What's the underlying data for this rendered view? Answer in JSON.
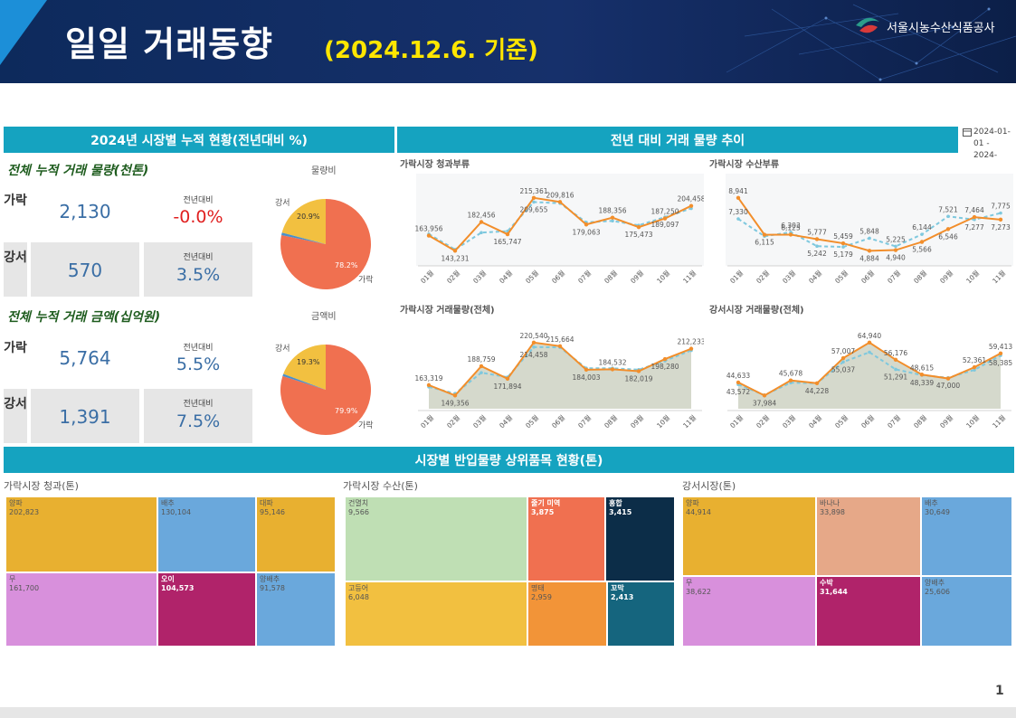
{
  "header": {
    "title": "일일 거래동향",
    "date": "(2024.12.6. 기준)",
    "org": "서울시농수산식품공사"
  },
  "sections": {
    "cumulative_title": "2024년 시장별 누적 현황(전년대비 %)",
    "trend_title": "전년 대비 거래 물량 추이",
    "date_range": "2024-01-01 - 2024-",
    "top_items_title": "시장별 반입물량 상위품목 현황(톤)"
  },
  "volume": {
    "title": "전체 누적 거래 물량(천톤)",
    "pie_title": "물량비",
    "rows": [
      {
        "market": "가락",
        "value": "2,130",
        "yoy_label": "전년대비",
        "yoy": "-0.0%"
      },
      {
        "market": "강서",
        "value": "570",
        "yoy_label": "전년대비",
        "yoy": "3.5%"
      }
    ],
    "pie": {
      "garak_pct": 78.2,
      "gangseo_pct": 20.9,
      "garak_label": "78.2%",
      "gangseo_label": "20.9%",
      "garak_name": "가락",
      "gangseo_name": "강서"
    }
  },
  "amount": {
    "title": "전체 누적 거래 금액(십억원)",
    "pie_title": "금액비",
    "rows": [
      {
        "market": "가락",
        "value": "5,764",
        "yoy_label": "전년대비",
        "yoy": "5.5%"
      },
      {
        "market": "강서",
        "value": "1,391",
        "yoy_label": "전년대비",
        "yoy": "7.5%"
      }
    ],
    "pie": {
      "garak_pct": 79.9,
      "gangseo_pct": 19.3,
      "garak_label": "79.9%",
      "gangseo_label": "19.3%",
      "garak_name": "가락",
      "gangseo_name": "강서"
    }
  },
  "colors": {
    "orange": "#f28e2b",
    "dashed": "#7ec8de",
    "garak": "#f07050",
    "gangseo": "#f2c040",
    "blue_slice": "#4a90c8",
    "area": "#d5d9cc"
  },
  "chart_data": [
    {
      "type": "line",
      "title": "가락시장 청과부류",
      "categories": [
        "01월",
        "02월",
        "03월",
        "04월",
        "05월",
        "06월",
        "07월",
        "08월",
        "09월",
        "10월",
        "11월"
      ],
      "series": [
        {
          "values": [
            163956,
            143231,
            182456,
            165747,
            215361,
            209816,
            179063,
            188356,
            175473,
            187250,
            204458
          ]
        },
        {
          "values": [
            166000,
            145000,
            168000,
            170000,
            209655,
            208000,
            182000,
            184000,
            178000,
            189097,
            201000
          ]
        }
      ]
    },
    {
      "type": "line",
      "title": "가락시장 수산부류",
      "categories": [
        "01월",
        "02월",
        "03월",
        "04월",
        "05월",
        "06월",
        "07월",
        "08월",
        "09월",
        "10월",
        "11월"
      ],
      "series": [
        {
          "values": [
            8941,
            6115,
            6125,
            5777,
            5459,
            4884,
            4940,
            5566,
            6546,
            7464,
            7273
          ]
        },
        {
          "values": [
            7330,
            6000,
            6303,
            5242,
            5179,
            5848,
            5225,
            6144,
            7521,
            7277,
            7775
          ]
        }
      ]
    },
    {
      "type": "area",
      "title": "가락시장 거래물량(전체)",
      "categories": [
        "01월",
        "02월",
        "03월",
        "04월",
        "05월",
        "06월",
        "07월",
        "08월",
        "09월",
        "10월",
        "11월"
      ],
      "series": [
        {
          "values": [
            163319,
            149356,
            188759,
            171894,
            220540,
            215664,
            184003,
            184532,
            182019,
            198280,
            212233
          ]
        },
        {
          "values": [
            161000,
            152000,
            180000,
            174000,
            214458,
            214000,
            186000,
            186000,
            184000,
            196000,
            210000
          ]
        }
      ]
    },
    {
      "type": "area",
      "title": "강서시장 거래물량(전체)",
      "categories": [
        "01월",
        "02월",
        "03월",
        "04월",
        "05월",
        "06월",
        "07월",
        "08월",
        "09월",
        "10월",
        "11월"
      ],
      "series": [
        {
          "values": [
            44633,
            37984,
            45678,
            44228,
            57007,
            64940,
            56176,
            48615,
            46642,
            52361,
            59413
          ]
        },
        {
          "values": [
            43572,
            38200,
            44500,
            44228,
            55037,
            60000,
            51291,
            48339,
            47000,
            51000,
            58385
          ]
        }
      ]
    }
  ],
  "treemaps": [
    {
      "title": "가락시장 청과(톤)",
      "cells": [
        {
          "name": "양파",
          "value": "202,823",
          "color": "#e8b030",
          "light": false
        },
        {
          "name": "배추",
          "value": "130,104",
          "color": "#6aa8dc",
          "light": false
        },
        {
          "name": "대파",
          "value": "95,146",
          "color": "#e8b030",
          "light": false
        },
        {
          "name": "무",
          "value": "161,700",
          "color": "#d890dc",
          "light": false
        },
        {
          "name": "오이",
          "value": "104,573",
          "color": "#b0236a",
          "light": true
        },
        {
          "name": "양배추",
          "value": "91,578",
          "color": "#6aa8dc",
          "light": false
        }
      ]
    },
    {
      "title": "가락시장 수산(톤)",
      "cells": [
        {
          "name": "건멸치",
          "value": "9,566",
          "color": "#bfdfb4",
          "light": false
        },
        {
          "name": "줄기 미역",
          "value": "3,875",
          "color": "#f07050",
          "light": true
        },
        {
          "name": "홍합",
          "value": "3,415",
          "color": "#0c2d48",
          "light": true
        },
        {
          "name": "고등어",
          "value": "6,048",
          "color": "#f2c040",
          "light": false
        },
        {
          "name": "명태",
          "value": "2,959",
          "color": "#f29438",
          "light": false
        },
        {
          "name": "꼬막",
          "value": "2,413",
          "color": "#15657e",
          "light": true
        }
      ]
    },
    {
      "title": "강서시장(톤)",
      "cells": [
        {
          "name": "양파",
          "value": "44,914",
          "color": "#e8b030",
          "light": false
        },
        {
          "name": "바나나",
          "value": "33,898",
          "color": "#e6a888",
          "light": false
        },
        {
          "name": "배추",
          "value": "30,649",
          "color": "#6aa8dc",
          "light": false
        },
        {
          "name": "무",
          "value": "38,622",
          "color": "#d890dc",
          "light": false
        },
        {
          "name": "수박",
          "value": "31,644",
          "color": "#b0236a",
          "light": true
        },
        {
          "name": "양배추",
          "value": "25,606",
          "color": "#6aa8dc",
          "light": false
        }
      ]
    }
  ],
  "page_number": "1"
}
